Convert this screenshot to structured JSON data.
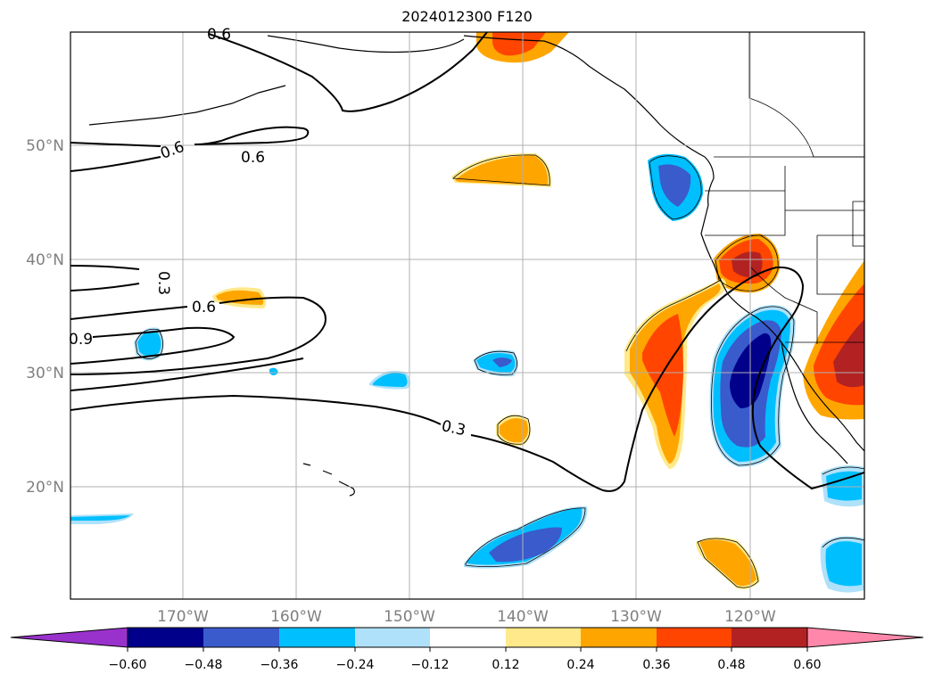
{
  "title": "2024012300 F120",
  "lat_labels": [
    "50°N",
    "40°N",
    "30°N",
    "20°N"
  ],
  "lon_labels": [
    "170°W",
    "160°W",
    "150°W",
    "140°W",
    "130°W",
    "120°W"
  ],
  "contour_labels": [
    "0.6",
    "0.6",
    "0.6",
    "0.3",
    "0.9",
    "0.3",
    "0.6"
  ],
  "colorbar": {
    "tick_labels": [
      "−0.60",
      "−0.48",
      "−0.36",
      "−0.24",
      "−0.12",
      "0.12",
      "0.24",
      "0.36",
      "0.48",
      "0.60"
    ],
    "colors": {
      "under": "#9932cc",
      "c1": "#00008b",
      "c2": "#3a5bcc",
      "c3": "#00bfff",
      "c4": "#afe1fa",
      "c5": "#ffffff",
      "c6": "#ffe98a",
      "c7": "#ffa500",
      "c8": "#ff4500",
      "c9": "#b22222",
      "over": "#ff88aa"
    }
  }
}
